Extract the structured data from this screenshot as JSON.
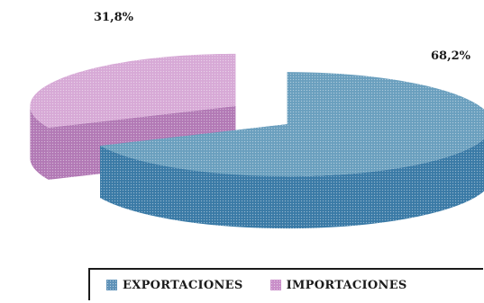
{
  "chart_data": {
    "type": "pie",
    "title": "",
    "categories": [
      "EXPORTACIONES",
      "IMPORTACIONES"
    ],
    "values": [
      68.2,
      31.8
    ],
    "data_labels": [
      "68,2%",
      "31,8%"
    ],
    "colors": {
      "EXPORTACIONES": {
        "top": "#6a9fbe",
        "side": "#3a7aa6"
      },
      "IMPORTACIONES": {
        "top": "#d7a9d6",
        "side": "#b279b5"
      }
    },
    "exploded": true,
    "style": "3d",
    "legend_placement": "bottom"
  },
  "legend": {
    "items": [
      {
        "label": "EXPORTACIONES",
        "color": "#5f92b8"
      },
      {
        "label": "IMPORTACIONES",
        "color": "#c98fc9"
      }
    ]
  }
}
